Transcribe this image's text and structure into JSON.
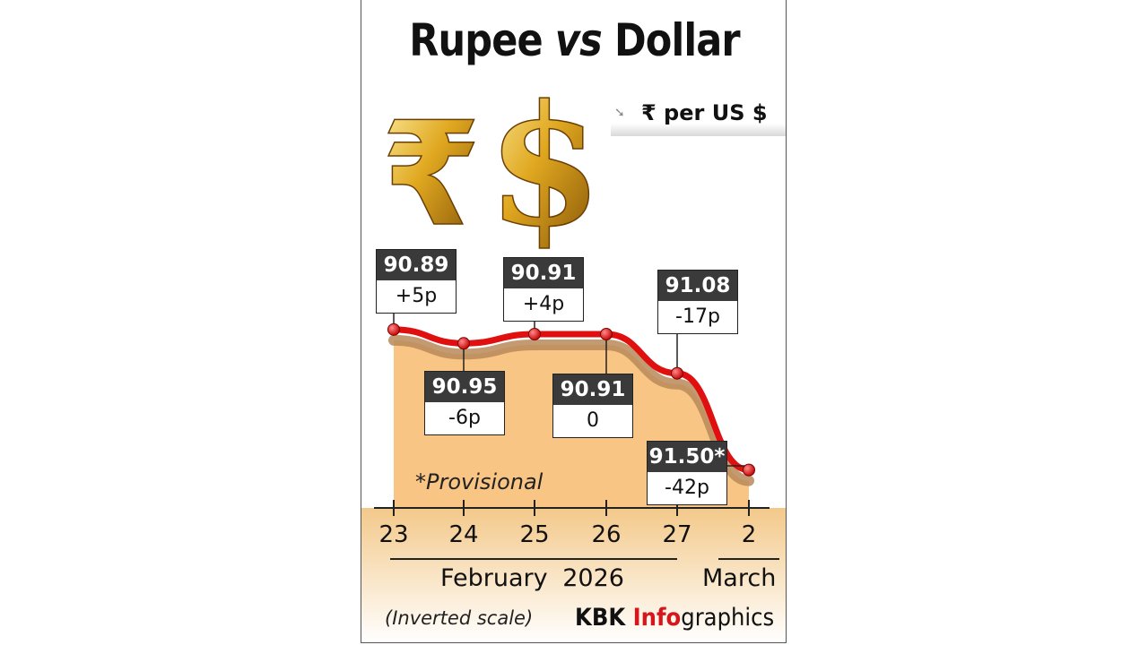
{
  "title_part1": "Rupee ",
  "title_part2": "vs",
  "title_part3": " Dollar",
  "unit_label": "₹ per US $",
  "provisional_note": "*Provisional",
  "scale_note": "(Inverted scale)",
  "credit": {
    "kbk": "KBK ",
    "info": "Info",
    "rest": "graphics"
  },
  "months": {
    "feb": "February 2026",
    "mar": "March"
  },
  "colors": {
    "line": "#e11010",
    "area": "#f9c584",
    "axis_band": "#f1c98d",
    "callout_header": "#3a3a3a"
  },
  "icons": [
    "rupee-symbol-icon",
    "dollar-symbol-icon"
  ],
  "chart_data": {
    "type": "area",
    "title": "Rupee vs Dollar",
    "ylabel": "₹ per US $",
    "y_scale": "inverted",
    "categories": [
      "23",
      "24",
      "25",
      "26",
      "27",
      "2"
    ],
    "values": [
      90.89,
      90.95,
      90.91,
      90.91,
      91.08,
      91.5
    ],
    "changes": [
      "+5p",
      "-6p",
      "+4p",
      "0",
      "-17p",
      "-42p"
    ],
    "value_labels": [
      "90.89",
      "90.95",
      "90.91",
      "90.91",
      "91.08",
      "91.50*"
    ],
    "annotations": [
      "*Provisional",
      "(Inverted scale)"
    ]
  }
}
